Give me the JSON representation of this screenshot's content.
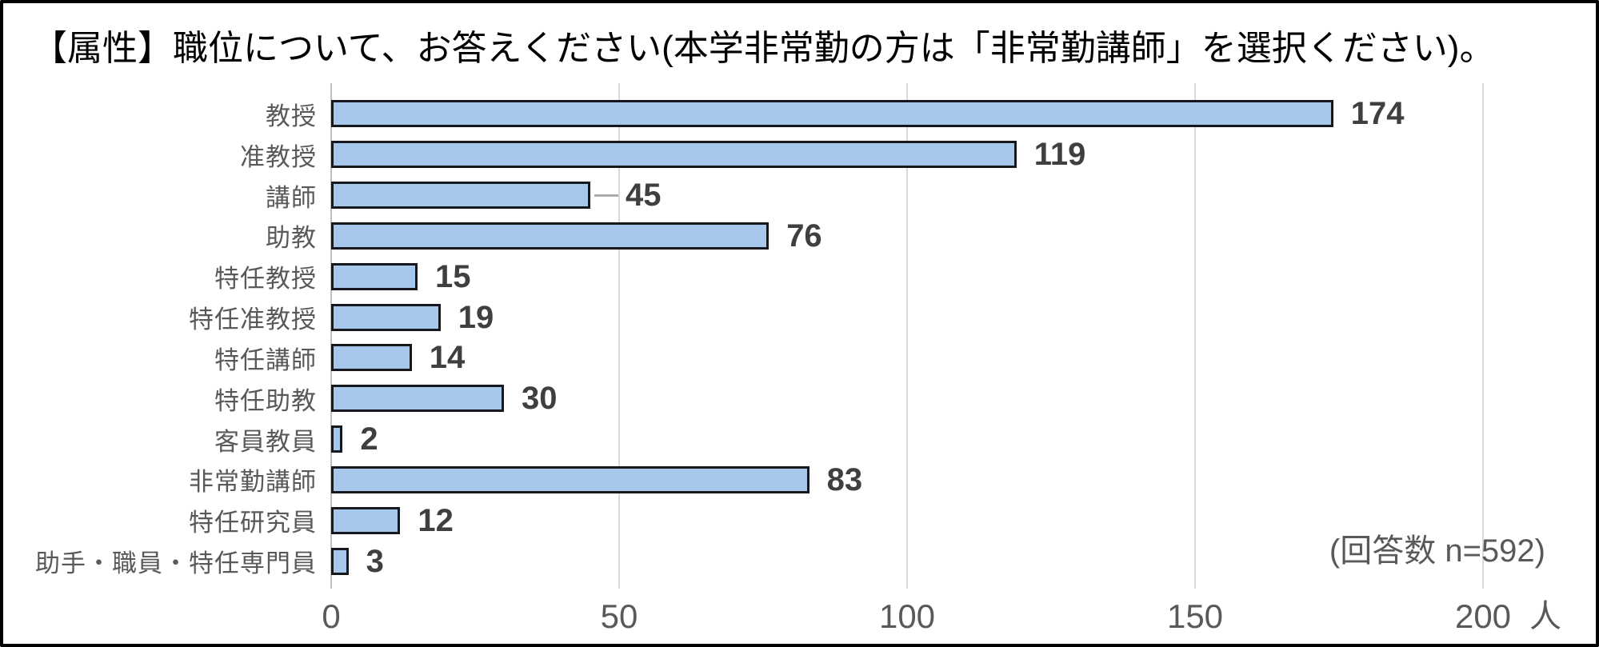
{
  "title": "【属性】職位について、お答えください(本学非常勤の方は「非常勤講師」を選択ください)。",
  "annotation": "(回答数 n=592)",
  "colors": {
    "bar_fill": "#a6c8ea",
    "bar_border": "#16181d",
    "gridline": "#d9d9d9",
    "axis_line": "#bfbfbf",
    "label_text": "#595959",
    "value_text": "#3f3f3f",
    "leader_line": "#adadad",
    "title_text": "#000000"
  },
  "chart_data": {
    "type": "bar",
    "orientation": "horizontal",
    "title": "【属性】職位について、お答えください(本学非常勤の方は「非常勤講師」を選択ください)。",
    "categories": [
      "教授",
      "准教授",
      "講師",
      "助教",
      "特任教授",
      "特任准教授",
      "特任講師",
      "特任助教",
      "客員教員",
      "非常勤講師",
      "特任研究員",
      "助手・職員・特任専門員"
    ],
    "values": [
      174,
      119,
      45,
      76,
      15,
      19,
      14,
      30,
      2,
      83,
      12,
      3
    ],
    "xlabel_unit": "人",
    "xlim": [
      0,
      200
    ],
    "xticks": [
      0,
      50,
      100,
      150,
      200
    ],
    "grid": true,
    "data_labels": true,
    "leader_line_index": 2,
    "annotation": "(回答数 n=592)",
    "n_total": 592
  }
}
